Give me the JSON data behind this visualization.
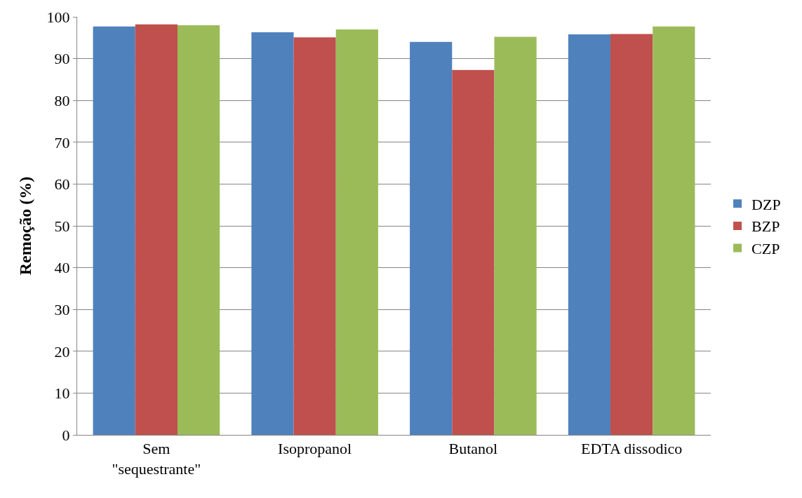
{
  "chart_data": {
    "type": "bar",
    "ylabel": "Remoção (%)",
    "categories": [
      "Sem\n\"sequestrante\"",
      "Isopropanol",
      "Butanol",
      "EDTA dissodico"
    ],
    "series": [
      {
        "name": "DZP",
        "color": "#4f81bd",
        "values": [
          97.7,
          96.3,
          94.0,
          95.8
        ]
      },
      {
        "name": "BZP",
        "color": "#c0504d",
        "values": [
          98.2,
          95.1,
          87.3,
          95.9
        ]
      },
      {
        "name": "CZP",
        "color": "#9bbb59",
        "values": [
          98.0,
          97.0,
          95.2,
          97.7
        ]
      }
    ],
    "ylim": [
      0,
      100
    ],
    "yticks": [
      0,
      10,
      20,
      30,
      40,
      50,
      60,
      70,
      80,
      90,
      100
    ],
    "grid": "y",
    "legend": "right"
  }
}
